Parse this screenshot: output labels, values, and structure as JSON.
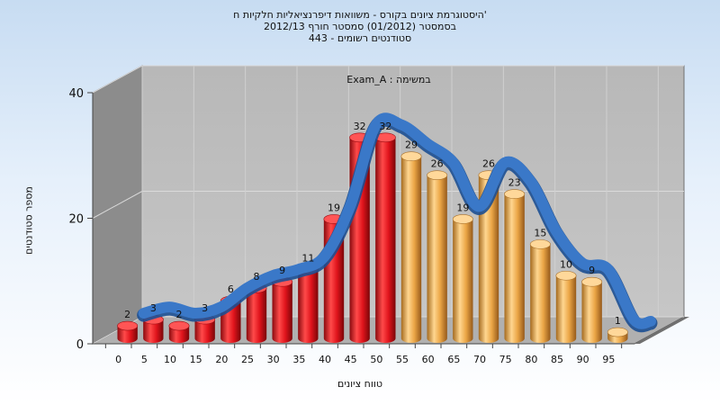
{
  "titles": {
    "line1": "היסטוגרמת ציונים בקורס - משוואות דיפרנציאליות חלקיות ח'",
    "line2": "בסמסטר  (01/2012)  סמסטר חורף 2012/13",
    "line3": "443 - סטודנטים רשומים"
  },
  "chart_data": {
    "type": "bar",
    "title": "Exam_A : במשימה",
    "xlabel": "טווח ציונים",
    "ylabel": "מספר סטודנטים",
    "categories": [
      "0",
      "5",
      "10",
      "15",
      "20",
      "25",
      "30",
      "35",
      "40",
      "45",
      "50",
      "55",
      "60",
      "65",
      "70",
      "75",
      "80",
      "85",
      "90",
      "95"
    ],
    "values": [
      2,
      3,
      2,
      3,
      6,
      8,
      9,
      11,
      19,
      32,
      32,
      29,
      26,
      19,
      26,
      23,
      15,
      10,
      9,
      1
    ],
    "yticks": [
      0,
      20,
      40
    ],
    "ylim": [
      0,
      40
    ],
    "grid": true,
    "has_trend_curve": true,
    "colors": {
      "fail": "#e0141c",
      "pass": "#f0b050",
      "trend": "#3a78c8",
      "back_wall": "#c0c0c0",
      "side_wall": "#8c8c8c"
    },
    "fail_below_index": 11
  }
}
